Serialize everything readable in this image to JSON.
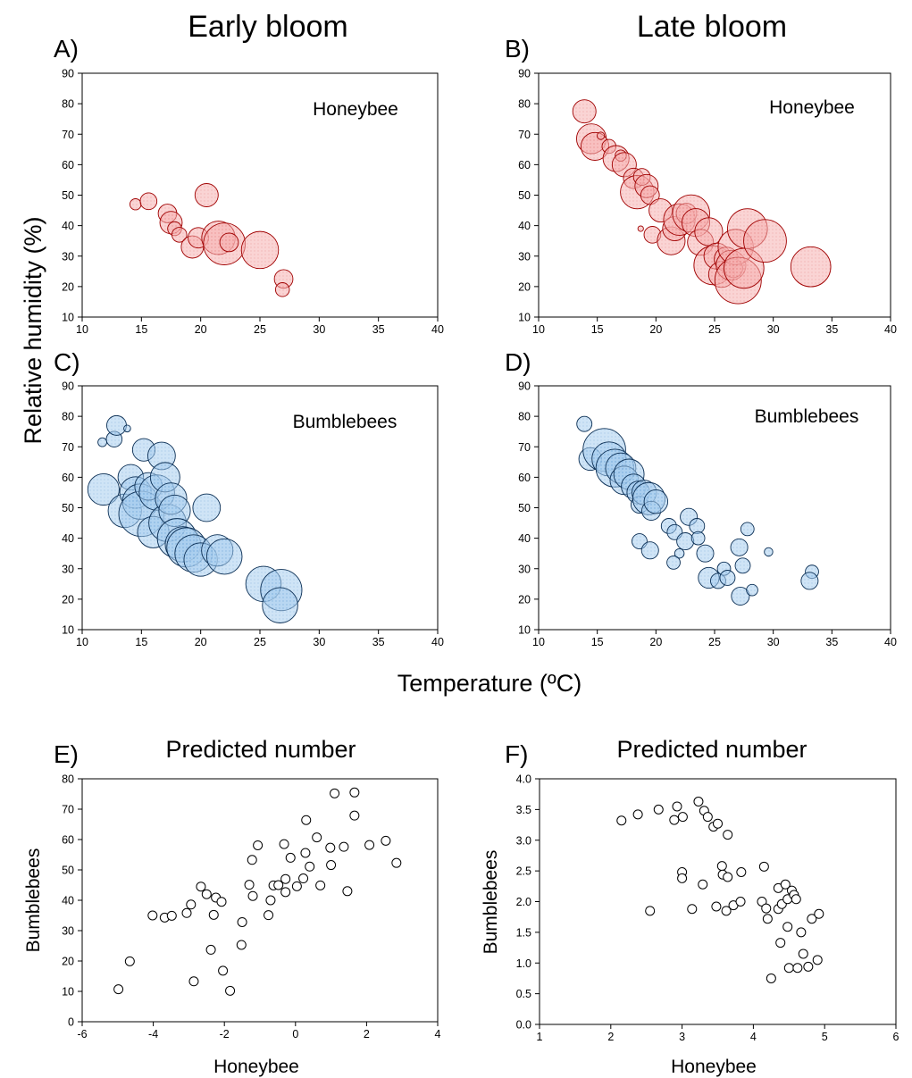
{
  "column_titles": {
    "left": "Early bloom",
    "right": "Late bloom"
  },
  "shared_labels": {
    "y_top": "Relative humidity (%)",
    "x_top": "Temperature (ºC)"
  },
  "colors": {
    "honeybee_fill": "#f4a3a3",
    "honeybee_stroke": "#a00000",
    "bumblebee_fill": "#8bbce6",
    "bumblebee_stroke": "#0b2f55",
    "open_marker_stroke": "#000000"
  },
  "chart_data": [
    {
      "panel": "A)",
      "type": "scatter",
      "subtype": "bubble",
      "label": "Honeybee",
      "xlim": [
        10,
        40
      ],
      "ylim": [
        10,
        90
      ],
      "x_ticks": [
        "10",
        "15",
        "20",
        "25",
        "30",
        "35",
        "40"
      ],
      "y_ticks": [
        "10",
        "20",
        "30",
        "40",
        "50",
        "60",
        "70",
        "80",
        "90"
      ],
      "color": "honeybee",
      "points": [
        {
          "x": 14.5,
          "y": 47,
          "size": 1.2
        },
        {
          "x": 15.6,
          "y": 48,
          "size": 1.8
        },
        {
          "x": 17.2,
          "y": 44,
          "size": 2.0
        },
        {
          "x": 17.5,
          "y": 41,
          "size": 2.4
        },
        {
          "x": 17.8,
          "y": 39,
          "size": 1.5
        },
        {
          "x": 18.2,
          "y": 37,
          "size": 1.6
        },
        {
          "x": 19.3,
          "y": 33,
          "size": 2.4
        },
        {
          "x": 19.8,
          "y": 36,
          "size": 2.2
        },
        {
          "x": 20.5,
          "y": 50,
          "size": 2.5
        },
        {
          "x": 21.5,
          "y": 36,
          "size": 3.6
        },
        {
          "x": 22.0,
          "y": 34,
          "size": 4.5
        },
        {
          "x": 22.4,
          "y": 34.5,
          "size": 2.0
        },
        {
          "x": 25.0,
          "y": 32,
          "size": 4.0
        },
        {
          "x": 27.0,
          "y": 22.5,
          "size": 2.0
        },
        {
          "x": 26.9,
          "y": 19,
          "size": 1.5
        }
      ]
    },
    {
      "panel": "B)",
      "type": "scatter",
      "subtype": "bubble",
      "label": "Honeybee",
      "xlim": [
        10,
        40
      ],
      "ylim": [
        10,
        90
      ],
      "x_ticks": [
        "10",
        "15",
        "20",
        "25",
        "30",
        "35",
        "40"
      ],
      "y_ticks": [
        "10",
        "20",
        "30",
        "40",
        "50",
        "60",
        "70",
        "80",
        "90"
      ],
      "color": "honeybee",
      "points": [
        {
          "x": 13.9,
          "y": 77.5,
          "size": 2.5
        },
        {
          "x": 14.5,
          "y": 68.5,
          "size": 3.2
        },
        {
          "x": 14.8,
          "y": 66,
          "size": 3.0
        },
        {
          "x": 15.3,
          "y": 69.5,
          "size": 0.8
        },
        {
          "x": 16.0,
          "y": 66,
          "size": 1.5
        },
        {
          "x": 16.6,
          "y": 62,
          "size": 2.8
        },
        {
          "x": 17.0,
          "y": 63,
          "size": 1.2
        },
        {
          "x": 17.3,
          "y": 60,
          "size": 2.6
        },
        {
          "x": 18.1,
          "y": 55.5,
          "size": 2.2
        },
        {
          "x": 18.4,
          "y": 51,
          "size": 3.6
        },
        {
          "x": 18.8,
          "y": 56,
          "size": 1.8
        },
        {
          "x": 18.7,
          "y": 39,
          "size": 0.6
        },
        {
          "x": 19.2,
          "y": 53,
          "size": 2.5
        },
        {
          "x": 19.5,
          "y": 50,
          "size": 2.0
        },
        {
          "x": 19.7,
          "y": 37,
          "size": 1.8
        },
        {
          "x": 20.4,
          "y": 45,
          "size": 2.5
        },
        {
          "x": 21.3,
          "y": 35,
          "size": 3.0
        },
        {
          "x": 21.6,
          "y": 39,
          "size": 2.6
        },
        {
          "x": 22.0,
          "y": 42,
          "size": 3.4
        },
        {
          "x": 22.6,
          "y": 44,
          "size": 2.2
        },
        {
          "x": 23.0,
          "y": 44,
          "size": 4.0
        },
        {
          "x": 23.4,
          "y": 41,
          "size": 3.0
        },
        {
          "x": 23.8,
          "y": 34.5,
          "size": 2.8
        },
        {
          "x": 24.5,
          "y": 38,
          "size": 3.0
        },
        {
          "x": 24.9,
          "y": 27,
          "size": 4.2
        },
        {
          "x": 25.2,
          "y": 30,
          "size": 2.8
        },
        {
          "x": 25.6,
          "y": 24,
          "size": 2.8
        },
        {
          "x": 26.0,
          "y": 29,
          "size": 2.6
        },
        {
          "x": 26.4,
          "y": 27,
          "size": 3.2
        },
        {
          "x": 26.6,
          "y": 26,
          "size": 2.0
        },
        {
          "x": 26.8,
          "y": 33,
          "size": 3.8
        },
        {
          "x": 27.0,
          "y": 22,
          "size": 5.0
        },
        {
          "x": 27.5,
          "y": 26,
          "size": 4.3
        },
        {
          "x": 27.8,
          "y": 39,
          "size": 4.3
        },
        {
          "x": 29.3,
          "y": 35,
          "size": 4.6
        },
        {
          "x": 33.2,
          "y": 26.5,
          "size": 4.3
        }
      ]
    },
    {
      "panel": "C)",
      "type": "scatter",
      "subtype": "bubble",
      "label": "Bumblebees",
      "xlim": [
        10,
        40
      ],
      "ylim": [
        10,
        90
      ],
      "x_ticks": [
        "10",
        "15",
        "20",
        "25",
        "30",
        "35",
        "40"
      ],
      "y_ticks": [
        "10",
        "20",
        "30",
        "40",
        "50",
        "60",
        "70",
        "80",
        "90"
      ],
      "color": "bumblebee",
      "points": [
        {
          "x": 11.7,
          "y": 71.5,
          "size": 0.9
        },
        {
          "x": 12.7,
          "y": 72.5,
          "size": 1.6
        },
        {
          "x": 12.9,
          "y": 77,
          "size": 2.0
        },
        {
          "x": 13.8,
          "y": 76,
          "size": 0.7
        },
        {
          "x": 11.8,
          "y": 56,
          "size": 3.2
        },
        {
          "x": 13.6,
          "y": 49,
          "size": 3.4
        },
        {
          "x": 14.1,
          "y": 60,
          "size": 2.6
        },
        {
          "x": 14.5,
          "y": 55,
          "size": 3.2
        },
        {
          "x": 14.9,
          "y": 52,
          "size": 3.6
        },
        {
          "x": 15.0,
          "y": 48,
          "size": 4.6
        },
        {
          "x": 15.2,
          "y": 69,
          "size": 2.3
        },
        {
          "x": 15.6,
          "y": 57,
          "size": 2.8
        },
        {
          "x": 16.0,
          "y": 42,
          "size": 3.2
        },
        {
          "x": 16.3,
          "y": 55,
          "size": 3.6
        },
        {
          "x": 16.7,
          "y": 67,
          "size": 2.8
        },
        {
          "x": 17.0,
          "y": 60,
          "size": 3.0
        },
        {
          "x": 17.2,
          "y": 45,
          "size": 3.8
        },
        {
          "x": 17.5,
          "y": 53,
          "size": 3.2
        },
        {
          "x": 17.8,
          "y": 49,
          "size": 3.2
        },
        {
          "x": 18.0,
          "y": 40,
          "size": 4.0
        },
        {
          "x": 18.5,
          "y": 38,
          "size": 3.6
        },
        {
          "x": 18.8,
          "y": 37,
          "size": 4.0
        },
        {
          "x": 19.4,
          "y": 35,
          "size": 3.8
        },
        {
          "x": 20.0,
          "y": 33,
          "size": 3.4
        },
        {
          "x": 20.5,
          "y": 50,
          "size": 2.8
        },
        {
          "x": 21.4,
          "y": 36,
          "size": 3.2
        },
        {
          "x": 22.0,
          "y": 34,
          "size": 3.6
        },
        {
          "x": 25.3,
          "y": 25,
          "size": 3.6
        },
        {
          "x": 26.8,
          "y": 23,
          "size": 4.2
        },
        {
          "x": 26.7,
          "y": 18,
          "size": 3.6
        }
      ]
    },
    {
      "panel": "D)",
      "type": "scatter",
      "subtype": "bubble",
      "label": "Bumblebees",
      "xlim": [
        10,
        40
      ],
      "ylim": [
        10,
        90
      ],
      "x_ticks": [
        "10",
        "15",
        "20",
        "25",
        "30",
        "35",
        "40"
      ],
      "y_ticks": [
        "10",
        "20",
        "30",
        "40",
        "50",
        "60",
        "70",
        "80",
        "90"
      ],
      "color": "bumblebee",
      "points": [
        {
          "x": 13.9,
          "y": 77.5,
          "size": 1.6
        },
        {
          "x": 14.4,
          "y": 66,
          "size": 2.4
        },
        {
          "x": 15.6,
          "y": 69,
          "size": 4.5
        },
        {
          "x": 16.0,
          "y": 66,
          "size": 3.6
        },
        {
          "x": 16.5,
          "y": 63,
          "size": 4.0
        },
        {
          "x": 17.0,
          "y": 63,
          "size": 3.2
        },
        {
          "x": 17.3,
          "y": 59,
          "size": 3.0
        },
        {
          "x": 17.7,
          "y": 61,
          "size": 3.2
        },
        {
          "x": 18.1,
          "y": 57,
          "size": 2.6
        },
        {
          "x": 18.5,
          "y": 55,
          "size": 2.4
        },
        {
          "x": 18.6,
          "y": 51,
          "size": 1.8
        },
        {
          "x": 19.0,
          "y": 55,
          "size": 2.6
        },
        {
          "x": 19.4,
          "y": 53,
          "size": 3.4
        },
        {
          "x": 19.6,
          "y": 49,
          "size": 2.0
        },
        {
          "x": 20.0,
          "y": 52,
          "size": 2.5
        },
        {
          "x": 18.6,
          "y": 39,
          "size": 1.6
        },
        {
          "x": 19.5,
          "y": 36,
          "size": 1.8
        },
        {
          "x": 21.1,
          "y": 44,
          "size": 1.6
        },
        {
          "x": 21.6,
          "y": 42,
          "size": 1.6
        },
        {
          "x": 22.0,
          "y": 35,
          "size": 1.0
        },
        {
          "x": 22.5,
          "y": 39,
          "size": 1.8
        },
        {
          "x": 22.8,
          "y": 47,
          "size": 1.8
        },
        {
          "x": 21.5,
          "y": 32,
          "size": 1.4
        },
        {
          "x": 23.5,
          "y": 44,
          "size": 1.6
        },
        {
          "x": 23.6,
          "y": 40,
          "size": 1.4
        },
        {
          "x": 24.2,
          "y": 35,
          "size": 1.8
        },
        {
          "x": 24.5,
          "y": 27,
          "size": 2.2
        },
        {
          "x": 25.3,
          "y": 26,
          "size": 1.6
        },
        {
          "x": 25.8,
          "y": 30,
          "size": 1.4
        },
        {
          "x": 26.1,
          "y": 27,
          "size": 1.6
        },
        {
          "x": 27.1,
          "y": 37,
          "size": 1.8
        },
        {
          "x": 27.2,
          "y": 21,
          "size": 1.9
        },
        {
          "x": 27.4,
          "y": 31,
          "size": 1.6
        },
        {
          "x": 27.8,
          "y": 43,
          "size": 1.4
        },
        {
          "x": 28.2,
          "y": 23,
          "size": 1.2
        },
        {
          "x": 29.6,
          "y": 35.5,
          "size": 0.9
        },
        {
          "x": 33.3,
          "y": 29,
          "size": 1.4
        },
        {
          "x": 33.1,
          "y": 26,
          "size": 1.8
        }
      ]
    },
    {
      "panel": "E)",
      "type": "scatter",
      "title": "Predicted number",
      "xlabel": "Honeybee",
      "ylabel": "Bumblebees",
      "xlim": [
        -6,
        4
      ],
      "ylim": [
        0,
        80
      ],
      "x_ticks": [
        "-6",
        "-4",
        "-2",
        "0",
        "2",
        "4"
      ],
      "y_ticks": [
        "0",
        "10",
        "20",
        "30",
        "40",
        "50",
        "60",
        "70",
        "80"
      ],
      "marker": "open-circle",
      "points": [
        {
          "x": -4.98,
          "y": 10.7
        },
        {
          "x": -4.66,
          "y": 19.9
        },
        {
          "x": -4.02,
          "y": 35.0
        },
        {
          "x": -3.68,
          "y": 34.3
        },
        {
          "x": -3.48,
          "y": 34.9
        },
        {
          "x": -3.06,
          "y": 35.8
        },
        {
          "x": -2.94,
          "y": 38.6
        },
        {
          "x": -2.86,
          "y": 13.3
        },
        {
          "x": -2.66,
          "y": 44.5
        },
        {
          "x": -2.5,
          "y": 42.0
        },
        {
          "x": -2.38,
          "y": 23.7
        },
        {
          "x": -2.3,
          "y": 35.2
        },
        {
          "x": -2.24,
          "y": 40.9
        },
        {
          "x": -2.08,
          "y": 39.5
        },
        {
          "x": -2.04,
          "y": 16.8
        },
        {
          "x": -1.84,
          "y": 10.2
        },
        {
          "x": -1.52,
          "y": 25.3
        },
        {
          "x": -1.5,
          "y": 32.8
        },
        {
          "x": -1.3,
          "y": 45.1
        },
        {
          "x": -1.22,
          "y": 53.3
        },
        {
          "x": -1.2,
          "y": 41.4
        },
        {
          "x": -1.06,
          "y": 58.1
        },
        {
          "x": -0.76,
          "y": 35.1
        },
        {
          "x": -0.7,
          "y": 40.0
        },
        {
          "x": -0.62,
          "y": 44.9
        },
        {
          "x": -0.48,
          "y": 45.0
        },
        {
          "x": -0.32,
          "y": 58.5
        },
        {
          "x": -0.28,
          "y": 47.0
        },
        {
          "x": -0.28,
          "y": 42.7
        },
        {
          "x": -0.14,
          "y": 54.0
        },
        {
          "x": 0.04,
          "y": 44.6
        },
        {
          "x": 0.22,
          "y": 47.2
        },
        {
          "x": 0.28,
          "y": 55.6
        },
        {
          "x": 0.3,
          "y": 66.4
        },
        {
          "x": 0.4,
          "y": 51.1
        },
        {
          "x": 0.6,
          "y": 60.7
        },
        {
          "x": 0.7,
          "y": 44.9
        },
        {
          "x": 0.98,
          "y": 57.3
        },
        {
          "x": 1.0,
          "y": 51.6
        },
        {
          "x": 1.1,
          "y": 75.2
        },
        {
          "x": 1.36,
          "y": 57.6
        },
        {
          "x": 1.46,
          "y": 43.0
        },
        {
          "x": 1.66,
          "y": 75.5
        },
        {
          "x": 1.66,
          "y": 67.9
        },
        {
          "x": 2.08,
          "y": 58.2
        },
        {
          "x": 2.54,
          "y": 59.6
        },
        {
          "x": 2.84,
          "y": 52.3
        }
      ]
    },
    {
      "panel": "F)",
      "type": "scatter",
      "title": "Predicted number",
      "xlabel": "Honeybee",
      "ylabel": "Bumblebees",
      "xlim": [
        1,
        6
      ],
      "ylim": [
        0,
        4
      ],
      "x_ticks": [
        "1",
        "2",
        "3",
        "4",
        "5",
        "6"
      ],
      "y_ticks": [
        "0.0",
        "0.5",
        "1.0",
        "1.5",
        "2.0",
        "2.5",
        "3.0",
        "3.5",
        "4.0"
      ],
      "marker": "open-circle",
      "points": [
        {
          "x": 2.15,
          "y": 3.32
        },
        {
          "x": 2.38,
          "y": 3.42
        },
        {
          "x": 2.55,
          "y": 1.85
        },
        {
          "x": 2.67,
          "y": 3.5
        },
        {
          "x": 2.89,
          "y": 3.33
        },
        {
          "x": 2.93,
          "y": 3.55
        },
        {
          "x": 3.0,
          "y": 2.48
        },
        {
          "x": 3.0,
          "y": 2.38
        },
        {
          "x": 3.01,
          "y": 3.38
        },
        {
          "x": 3.14,
          "y": 1.88
        },
        {
          "x": 3.23,
          "y": 3.63
        },
        {
          "x": 3.29,
          "y": 2.28
        },
        {
          "x": 3.31,
          "y": 3.48
        },
        {
          "x": 3.36,
          "y": 3.38
        },
        {
          "x": 3.44,
          "y": 3.22
        },
        {
          "x": 3.48,
          "y": 1.92
        },
        {
          "x": 3.5,
          "y": 3.27
        },
        {
          "x": 3.56,
          "y": 2.58
        },
        {
          "x": 3.57,
          "y": 2.44
        },
        {
          "x": 3.62,
          "y": 1.85
        },
        {
          "x": 3.64,
          "y": 2.4
        },
        {
          "x": 3.64,
          "y": 3.09
        },
        {
          "x": 3.72,
          "y": 1.94
        },
        {
          "x": 3.82,
          "y": 2.0
        },
        {
          "x": 3.83,
          "y": 2.48
        },
        {
          "x": 4.12,
          "y": 2.0
        },
        {
          "x": 4.15,
          "y": 2.57
        },
        {
          "x": 4.18,
          "y": 1.89
        },
        {
          "x": 4.2,
          "y": 1.72
        },
        {
          "x": 4.25,
          "y": 0.75
        },
        {
          "x": 4.35,
          "y": 2.22
        },
        {
          "x": 4.35,
          "y": 1.88
        },
        {
          "x": 4.38,
          "y": 1.33
        },
        {
          "x": 4.4,
          "y": 1.96
        },
        {
          "x": 4.45,
          "y": 2.28
        },
        {
          "x": 4.48,
          "y": 1.59
        },
        {
          "x": 4.48,
          "y": 2.04
        },
        {
          "x": 4.5,
          "y": 0.92
        },
        {
          "x": 4.54,
          "y": 2.18
        },
        {
          "x": 4.57,
          "y": 2.11
        },
        {
          "x": 4.6,
          "y": 2.04
        },
        {
          "x": 4.62,
          "y": 0.92
        },
        {
          "x": 4.67,
          "y": 1.5
        },
        {
          "x": 4.7,
          "y": 1.15
        },
        {
          "x": 4.77,
          "y": 0.94
        },
        {
          "x": 4.82,
          "y": 1.72
        },
        {
          "x": 4.9,
          "y": 1.05
        },
        {
          "x": 4.92,
          "y": 1.8
        }
      ]
    }
  ]
}
